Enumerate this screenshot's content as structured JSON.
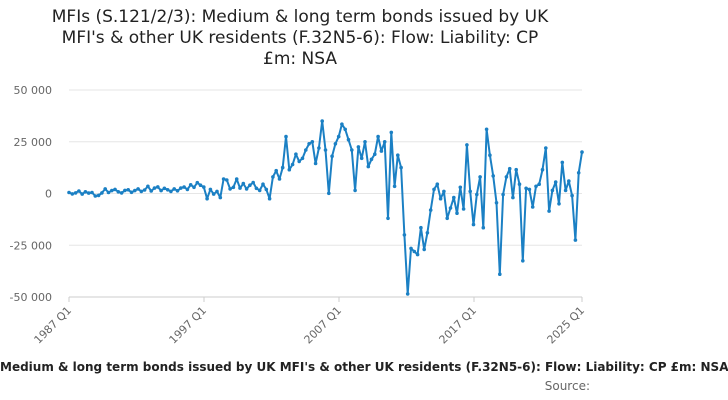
{
  "title_lines": [
    "MFIs (S.121/2/3): Medium & long term bonds issued by UK",
    "MFI's & other UK residents (F.32N5-6): Flow: Liability: CP",
    "£m: NSA"
  ],
  "caption": "Medium & long term bonds issued by UK MFI's & other UK residents (F.32N5-6): Flow: Liability: CP £m: NSA",
  "source_label": "Source:",
  "colors": {
    "line": "#1b80c4",
    "grid": "#e6e6e6",
    "axis": "#cccccc",
    "tick_text": "#666666"
  },
  "chart_data": {
    "type": "line",
    "title": "MFIs (S.121/2/3): Medium & long term bonds issued by UK MFI's & other UK residents (F.32N5-6): Flow: Liability: CP £m: NSA",
    "x_start": "1987 Q1",
    "x_end": "2025 Q1",
    "xlim": [
      1987,
      2025
    ],
    "ylim": [
      -50000,
      50000
    ],
    "y_ticks": [
      50000,
      25000,
      0,
      -25000,
      -50000
    ],
    "y_tick_labels": [
      "50 000",
      "25 000",
      "0",
      "-25 000",
      "-50 000"
    ],
    "x_ticks": [
      1987,
      1997,
      2007,
      2017,
      2025
    ],
    "x_tick_labels": [
      "1987 Q1",
      "1997 Q1",
      "2007 Q1",
      "2017 Q1",
      "2025 Q1"
    ],
    "grid": "horizontal",
    "series": [
      {
        "values": [
          500,
          -200,
          300,
          1200,
          -300,
          800,
          200,
          500,
          -1200,
          -900,
          300,
          2200,
          500,
          1400,
          2000,
          800,
          300,
          1500,
          1800,
          600,
          1400,
          2200,
          1000,
          1700,
          3500,
          1200,
          2600,
          3200,
          1400,
          2500,
          1800,
          1000,
          2200,
          1300,
          2600,
          3100,
          2000,
          4200,
          3000,
          5200,
          4000,
          3100,
          -2500,
          2000,
          -300,
          1000,
          -2000,
          7000,
          6500,
          2200,
          3000,
          7000,
          2600,
          4800,
          2200,
          4000,
          5300,
          2500,
          1500,
          4500,
          2000,
          -2500,
          8000,
          11000,
          7000,
          12500,
          27500,
          11500,
          14000,
          19000,
          15500,
          17000,
          21000,
          24000,
          25000,
          14500,
          22000,
          35000,
          21000,
          100,
          18000,
          24000,
          27500,
          33500,
          31000,
          26000,
          21000,
          1500,
          22500,
          17000,
          25000,
          13000,
          16500,
          19000,
          27500,
          20500,
          25000,
          -12000,
          29500,
          3500,
          18500,
          12500,
          -20000,
          -48500,
          -26500,
          -28000,
          -29500,
          -16500,
          -27000,
          -19000,
          -8000,
          2000,
          4500,
          -2500,
          1000,
          -12000,
          -7000,
          -2000,
          -9500,
          3000,
          -7500,
          23500,
          1000,
          -15000,
          -500,
          8000,
          -16500,
          31000,
          18500,
          8500,
          -4500,
          -39000,
          -500,
          8000,
          12000,
          -2000,
          11500,
          4500,
          -32500,
          2500,
          2000,
          -6500,
          3500,
          4500,
          11500,
          22000,
          -8500,
          1500,
          5500,
          -5000,
          15000,
          1500,
          6000,
          -1000,
          -22500,
          10000,
          20000
        ]
      }
    ]
  }
}
